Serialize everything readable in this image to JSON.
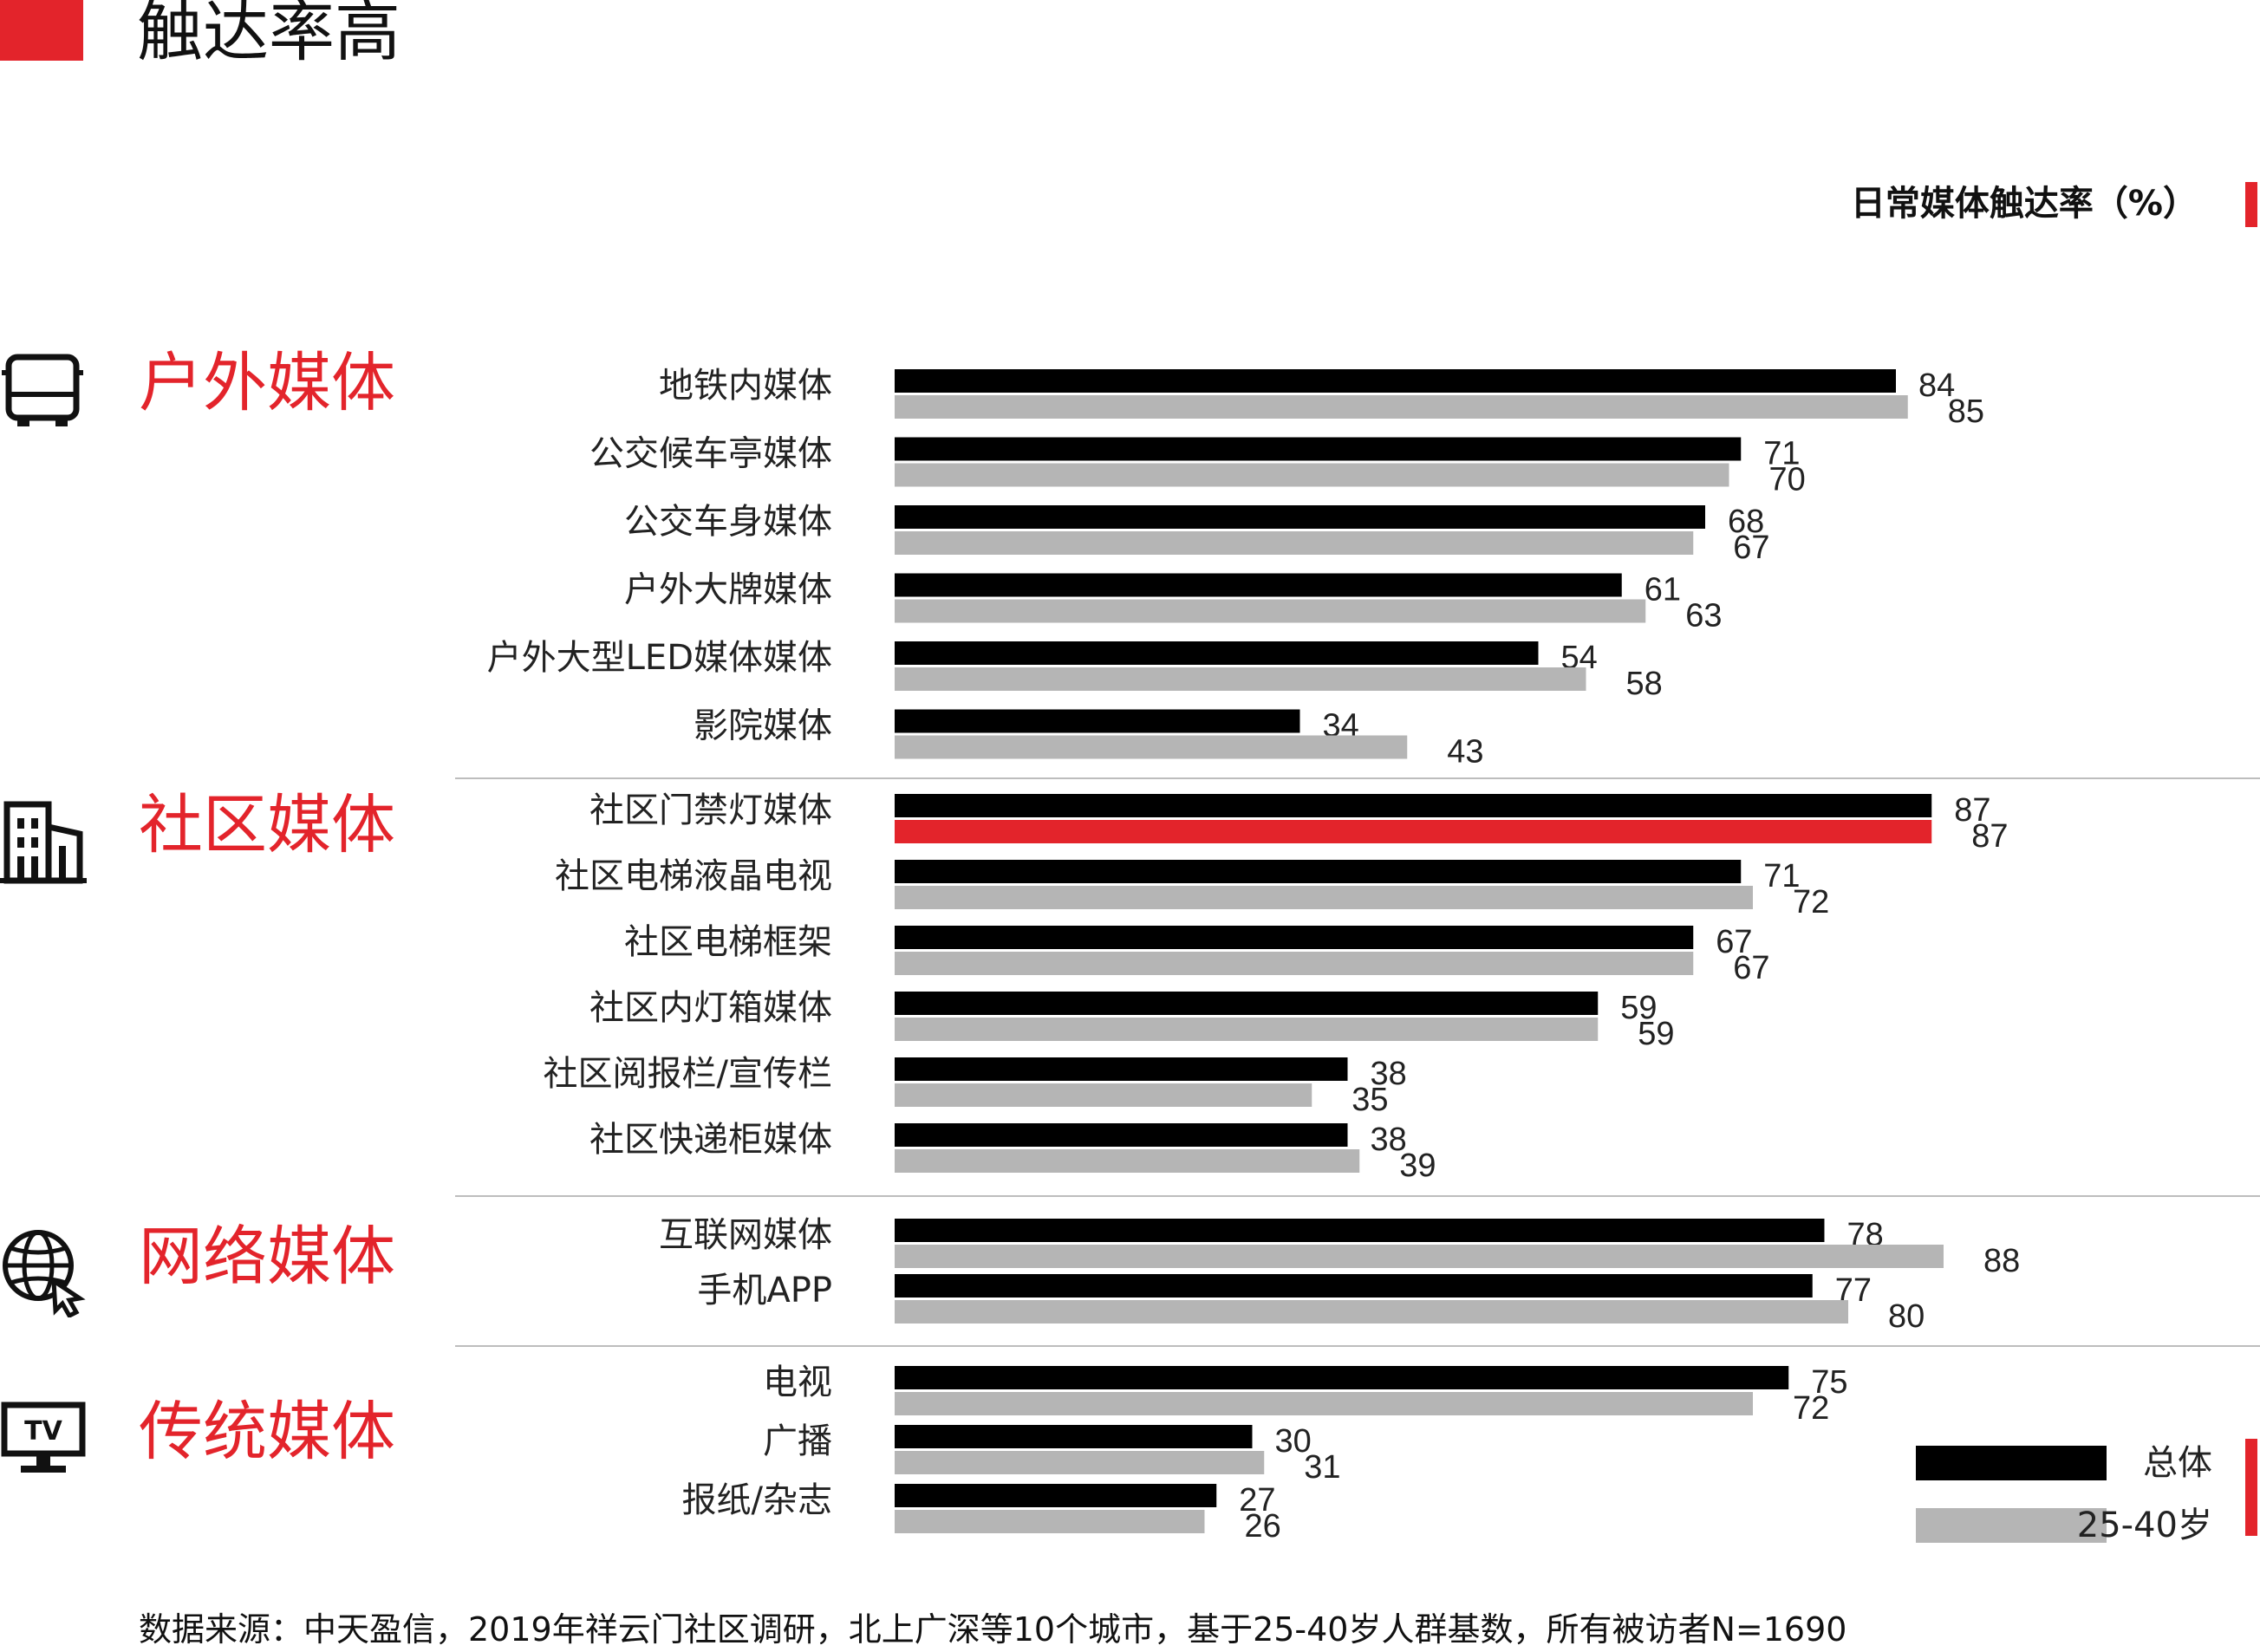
{
  "header": {
    "title": "触达率高",
    "accent_color": "#e3242b"
  },
  "chart_caption": "日常媒体触达率（%）",
  "source_note": "数据来源：中天盈信，2019年祥云门社区调研，北上广深等10个城市，基于25-40岁人群基数，所有被访者N=1690",
  "chart_data": {
    "type": "bar",
    "orientation": "horizontal",
    "unit": "%",
    "xlim": [
      0,
      100
    ],
    "grid": false,
    "legend_position": "bottom-right",
    "series": [
      {
        "name": "总体",
        "color": "#000000"
      },
      {
        "name": "25-40岁",
        "color": "#b5b5b5"
      }
    ],
    "highlight_color": "#e3242b",
    "groups": [
      {
        "name": "户外媒体",
        "icon": "bus-icon",
        "items": [
          {
            "label": "地铁内媒体",
            "values": [
              84,
              85
            ]
          },
          {
            "label": "公交候车亭媒体",
            "values": [
              71,
              70
            ]
          },
          {
            "label": "公交车身媒体",
            "values": [
              68,
              67
            ]
          },
          {
            "label": "户外大牌媒体",
            "values": [
              61,
              63
            ]
          },
          {
            "label": "户外大型LED媒体媒体",
            "values": [
              54,
              58
            ]
          },
          {
            "label": "影院媒体",
            "values": [
              34,
              43
            ]
          }
        ]
      },
      {
        "name": "社区媒体",
        "icon": "building-icon",
        "items": [
          {
            "label": "社区门禁灯媒体",
            "values": [
              87,
              87
            ],
            "highlight": true
          },
          {
            "label": "社区电梯液晶电视",
            "values": [
              71,
              72
            ]
          },
          {
            "label": "社区电梯框架",
            "values": [
              67,
              67
            ]
          },
          {
            "label": "社区内灯箱媒体",
            "values": [
              59,
              59
            ]
          },
          {
            "label": "社区阅报栏/宣传栏",
            "values": [
              38,
              35
            ]
          },
          {
            "label": "社区快递柜媒体",
            "values": [
              38,
              39
            ]
          }
        ]
      },
      {
        "name": "网络媒体",
        "icon": "globe-icon",
        "items": [
          {
            "label": "互联网媒体",
            "values": [
              78,
              88
            ]
          },
          {
            "label": "手机APP",
            "values": [
              77,
              80
            ]
          }
        ]
      },
      {
        "name": "传统媒体",
        "icon": "tv-icon",
        "items": [
          {
            "label": "电视",
            "values": [
              75,
              72
            ]
          },
          {
            "label": "广播",
            "values": [
              30,
              31
            ]
          },
          {
            "label": "报纸/杂志",
            "values": [
              27,
              26
            ]
          }
        ]
      }
    ]
  }
}
